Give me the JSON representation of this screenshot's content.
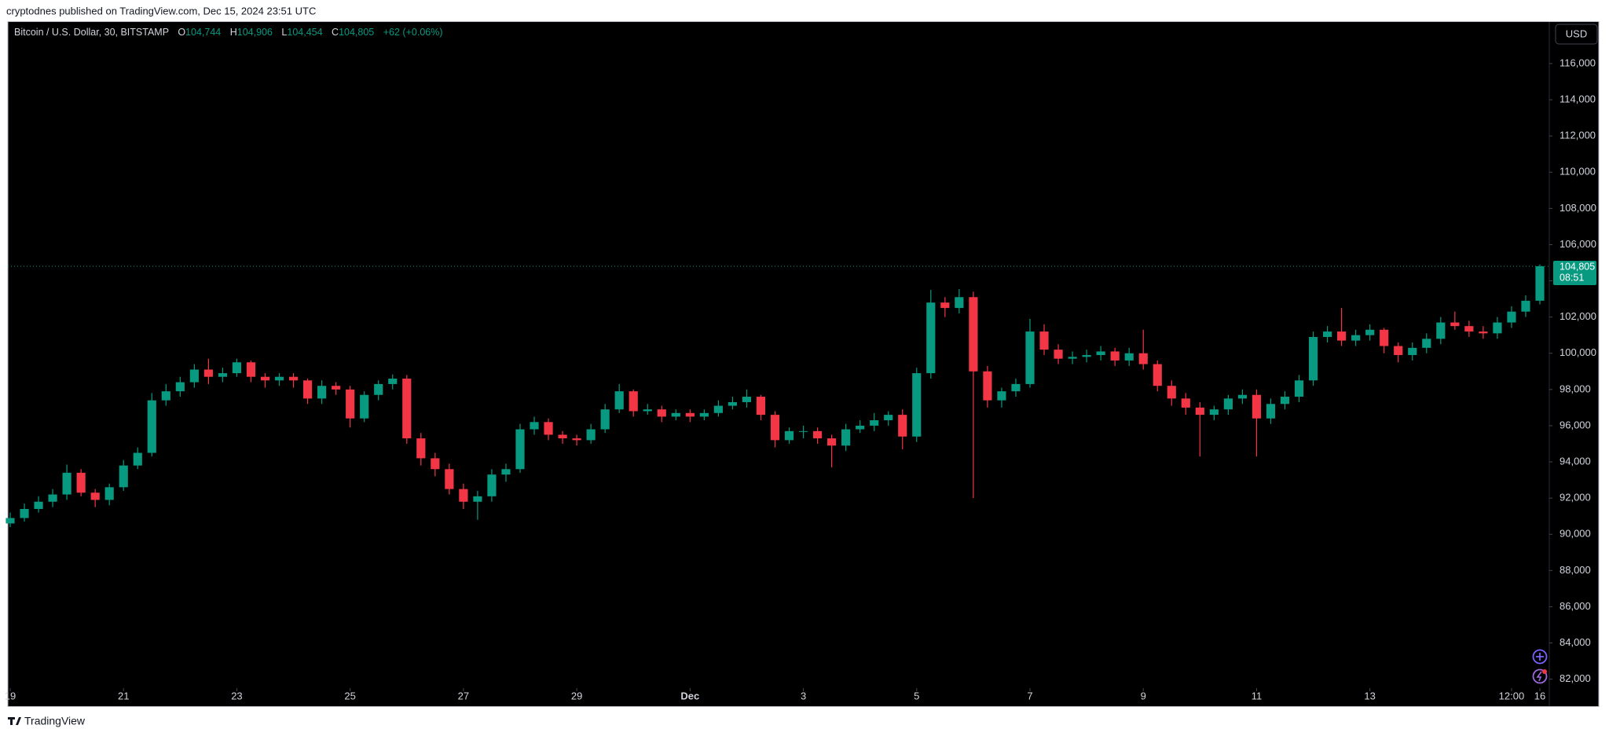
{
  "banner": "cryptodnes published on TradingView.com, Dec 15, 2024 23:51 UTC",
  "footer": "TradingView",
  "legend": {
    "symbol": "Bitcoin / U.S. Dollar, 30, BITSTAMP",
    "fields": [
      {
        "key": "O",
        "value": "104,744"
      },
      {
        "key": "H",
        "value": "104,906"
      },
      {
        "key": "L",
        "value": "104,454"
      },
      {
        "key": "C",
        "value": "104,805"
      }
    ],
    "change": "+62 (+0.06%)"
  },
  "currency": "USD",
  "countdown": "08:51",
  "chart_data": {
    "type": "candlestick",
    "up_color": "#089981",
    "down_color": "#f23645",
    "grid": false,
    "last_price": {
      "value": 104805,
      "label": "104,805"
    },
    "ylim": [
      81550,
      118340
    ],
    "yticks": [
      {
        "value": 82000,
        "label": "82,000"
      },
      {
        "value": 84000,
        "label": "84,000"
      },
      {
        "value": 86000,
        "label": "86,000"
      },
      {
        "value": 88000,
        "label": "88,000"
      },
      {
        "value": 90000,
        "label": "90,000"
      },
      {
        "value": 92000,
        "label": "92,000"
      },
      {
        "value": 94000,
        "label": "94,000"
      },
      {
        "value": 96000,
        "label": "96,000"
      },
      {
        "value": 98000,
        "label": "98,000"
      },
      {
        "value": 100000,
        "label": "100,000"
      },
      {
        "value": 102000,
        "label": "102,000"
      },
      {
        "value": 104000,
        "label": "104,000"
      },
      {
        "value": 106000,
        "label": "106,000"
      },
      {
        "value": 108000,
        "label": "108,000"
      },
      {
        "value": 110000,
        "label": "110,000"
      },
      {
        "value": 112000,
        "label": "112,000"
      },
      {
        "value": 114000,
        "label": "114,000"
      },
      {
        "value": 116000,
        "label": "116,000"
      }
    ],
    "xticks": [
      {
        "value": "Nov 19 00:00",
        "label": "19"
      },
      {
        "value": "Nov 21 00:00",
        "label": "21"
      },
      {
        "value": "Nov 23 00:00",
        "label": "23"
      },
      {
        "value": "Nov 25 00:00",
        "label": "25"
      },
      {
        "value": "Nov 27 00:00",
        "label": "27"
      },
      {
        "value": "Nov 29 00:00",
        "label": "29"
      },
      {
        "value": "Dec 1 00:00",
        "label": "Dec"
      },
      {
        "value": "Dec 3 00:00",
        "label": "3"
      },
      {
        "value": "Dec 5 00:00",
        "label": "5"
      },
      {
        "value": "Dec 7 00:00",
        "label": "7"
      },
      {
        "value": "Dec 9 00:00",
        "label": "9"
      },
      {
        "value": "Dec 11 00:00",
        "label": "11"
      },
      {
        "value": "Dec 13 00:00",
        "label": "13"
      },
      {
        "value": "Dec 15 12:00",
        "label": "12:00"
      },
      {
        "value": "Dec 16 00:00",
        "label": "16"
      }
    ],
    "categories": [
      "Nov 19 00:00",
      "Nov 19 06:00",
      "Nov 19 12:00",
      "Nov 19 18:00",
      "Nov 20 00:00",
      "Nov 20 06:00",
      "Nov 20 12:00",
      "Nov 20 18:00",
      "Nov 21 00:00",
      "Nov 21 06:00",
      "Nov 21 12:00",
      "Nov 21 18:00",
      "Nov 22 00:00",
      "Nov 22 06:00",
      "Nov 22 12:00",
      "Nov 22 18:00",
      "Nov 23 00:00",
      "Nov 23 06:00",
      "Nov 23 12:00",
      "Nov 23 18:00",
      "Nov 24 00:00",
      "Nov 24 06:00",
      "Nov 24 12:00",
      "Nov 24 18:00",
      "Nov 25 00:00",
      "Nov 25 06:00",
      "Nov 25 12:00",
      "Nov 25 18:00",
      "Nov 26 00:00",
      "Nov 26 06:00",
      "Nov 26 12:00",
      "Nov 26 18:00",
      "Nov 27 00:00",
      "Nov 27 06:00",
      "Nov 27 12:00",
      "Nov 27 18:00",
      "Nov 28 00:00",
      "Nov 28 06:00",
      "Nov 28 12:00",
      "Nov 28 18:00",
      "Nov 29 00:00",
      "Nov 29 06:00",
      "Nov 29 12:00",
      "Nov 29 18:00",
      "Nov 30 00:00",
      "Nov 30 06:00",
      "Nov 30 12:00",
      "Nov 30 18:00",
      "Dec 1 00:00",
      "Dec 1 06:00",
      "Dec 1 12:00",
      "Dec 1 18:00",
      "Dec 2 00:00",
      "Dec 2 06:00",
      "Dec 2 12:00",
      "Dec 2 18:00",
      "Dec 3 00:00",
      "Dec 3 06:00",
      "Dec 3 12:00",
      "Dec 3 18:00",
      "Dec 4 00:00",
      "Dec 4 06:00",
      "Dec 4 12:00",
      "Dec 4 18:00",
      "Dec 5 00:00",
      "Dec 5 06:00",
      "Dec 5 12:00",
      "Dec 5 18:00",
      "Dec 6 00:00",
      "Dec 6 06:00",
      "Dec 6 12:00",
      "Dec 6 18:00",
      "Dec 7 00:00",
      "Dec 7 06:00",
      "Dec 7 12:00",
      "Dec 7 18:00",
      "Dec 8 00:00",
      "Dec 8 06:00",
      "Dec 8 12:00",
      "Dec 8 18:00",
      "Dec 9 00:00",
      "Dec 9 06:00",
      "Dec 9 12:00",
      "Dec 9 18:00",
      "Dec 10 00:00",
      "Dec 10 06:00",
      "Dec 10 12:00",
      "Dec 10 18:00",
      "Dec 11 00:00",
      "Dec 11 06:00",
      "Dec 11 12:00",
      "Dec 11 18:00",
      "Dec 12 00:00",
      "Dec 12 06:00",
      "Dec 12 12:00",
      "Dec 12 18:00",
      "Dec 13 00:00",
      "Dec 13 06:00",
      "Dec 13 12:00",
      "Dec 13 18:00",
      "Dec 14 00:00",
      "Dec 14 06:00",
      "Dec 14 12:00",
      "Dec 14 18:00",
      "Dec 15 00:00",
      "Dec 15 06:00",
      "Dec 15 12:00",
      "Dec 15 18:00",
      "Dec 16 00:00"
    ],
    "open": [
      90600,
      90900,
      91400,
      91800,
      92200,
      93400,
      92300,
      91900,
      92600,
      93800,
      94500,
      97400,
      97900,
      98400,
      99100,
      98700,
      98900,
      99500,
      98700,
      98500,
      98700,
      98500,
      97500,
      98200,
      98000,
      96400,
      97700,
      98300,
      98600,
      95300,
      94200,
      93600,
      92500,
      91800,
      92100,
      93300,
      93600,
      95800,
      96200,
      95500,
      95300,
      95200,
      95800,
      96900,
      97900,
      96800,
      96900,
      96500,
      96700,
      96500,
      96700,
      97100,
      97300,
      97600,
      96600,
      95200,
      95700,
      95700,
      95300,
      94900,
      95800,
      96000,
      96300,
      96600,
      95400,
      98900,
      102800,
      102500,
      103100,
      99000,
      97400,
      97900,
      98300,
      101200,
      100200,
      99700,
      99800,
      99900,
      100100,
      99600,
      100000,
      99400,
      98200,
      97500,
      97000,
      96600,
      96900,
      97500,
      97700,
      96400,
      97200,
      97600,
      98500,
      100900,
      101200,
      100700,
      101000,
      101300,
      100400,
      99900,
      100300,
      100800,
      101700,
      101500,
      101200,
      101100,
      101700,
      102300,
      102900
    ],
    "high": [
      91200,
      91700,
      92100,
      92500,
      93850,
      93600,
      92500,
      92800,
      94100,
      94800,
      97800,
      98300,
      98700,
      99400,
      99700,
      99200,
      99700,
      99600,
      98900,
      98900,
      98900,
      98600,
      98500,
      98400,
      98200,
      97900,
      98500,
      98830,
      98800,
      95600,
      94500,
      93900,
      92800,
      92400,
      93600,
      93900,
      96100,
      96500,
      96400,
      95700,
      95500,
      96100,
      97200,
      98300,
      98000,
      97200,
      97100,
      96900,
      96900,
      96900,
      97400,
      97600,
      98000,
      97700,
      96800,
      95900,
      96000,
      95900,
      95500,
      96100,
      96300,
      96700,
      96800,
      96900,
      99200,
      103500,
      103100,
      103550,
      103400,
      99300,
      98100,
      98600,
      101900,
      101600,
      100500,
      100100,
      100200,
      100400,
      100300,
      100300,
      101300,
      99600,
      98500,
      97800,
      97300,
      97100,
      97700,
      98000,
      98000,
      97500,
      97900,
      98800,
      101200,
      101500,
      102500,
      101300,
      101600,
      101400,
      100600,
      100600,
      101100,
      102000,
      102300,
      101800,
      101500,
      102000,
      102600,
      103200,
      104906
    ],
    "low": [
      90400,
      90700,
      91200,
      91500,
      91900,
      92100,
      91500,
      91600,
      92400,
      93600,
      94300,
      97100,
      97600,
      98100,
      98300,
      98400,
      98700,
      98400,
      98100,
      98200,
      98100,
      97200,
      97200,
      97700,
      95900,
      96200,
      97400,
      98000,
      95000,
      93800,
      93200,
      92200,
      91400,
      90800,
      91800,
      92900,
      93400,
      95500,
      95200,
      95000,
      94900,
      95000,
      95600,
      96700,
      96500,
      96600,
      96200,
      96300,
      96200,
      96300,
      96500,
      96900,
      97000,
      96300,
      94800,
      95000,
      95300,
      95000,
      93700,
      94600,
      95600,
      95700,
      96000,
      94700,
      95100,
      98600,
      102000,
      102200,
      92000,
      97000,
      97000,
      97600,
      98100,
      99900,
      99400,
      99400,
      99500,
      99600,
      99300,
      99300,
      99100,
      97900,
      97100,
      96600,
      94300,
      96300,
      96600,
      97200,
      94300,
      96100,
      96900,
      97300,
      98200,
      100600,
      100400,
      100400,
      100700,
      100000,
      99500,
      99600,
      100000,
      100500,
      101300,
      100900,
      100800,
      100800,
      101400,
      102000,
      102700
    ],
    "close": [
      90900,
      91400,
      91800,
      92200,
      93400,
      92300,
      91900,
      92600,
      93800,
      94500,
      97400,
      97900,
      98400,
      99100,
      98700,
      98900,
      99500,
      98700,
      98500,
      98700,
      98500,
      97500,
      98200,
      98000,
      96400,
      97700,
      98300,
      98600,
      95300,
      94200,
      93600,
      92500,
      91800,
      92100,
      93300,
      93600,
      95800,
      96200,
      95500,
      95300,
      95200,
      95800,
      96900,
      97900,
      96800,
      96900,
      96500,
      96700,
      96500,
      96700,
      97100,
      97300,
      97600,
      96600,
      95200,
      95700,
      95700,
      95300,
      94900,
      95800,
      96000,
      96300,
      96600,
      95400,
      98900,
      102800,
      102500,
      103100,
      99000,
      97400,
      97900,
      98300,
      101200,
      100200,
      99700,
      99800,
      99900,
      100100,
      99600,
      100000,
      99400,
      98200,
      97500,
      97000,
      96600,
      96900,
      97500,
      97700,
      96400,
      97200,
      97600,
      98500,
      100900,
      101200,
      100700,
      101000,
      101300,
      100400,
      99900,
      100300,
      100800,
      101700,
      101500,
      101200,
      101100,
      101700,
      102300,
      102900,
      104805
    ]
  }
}
